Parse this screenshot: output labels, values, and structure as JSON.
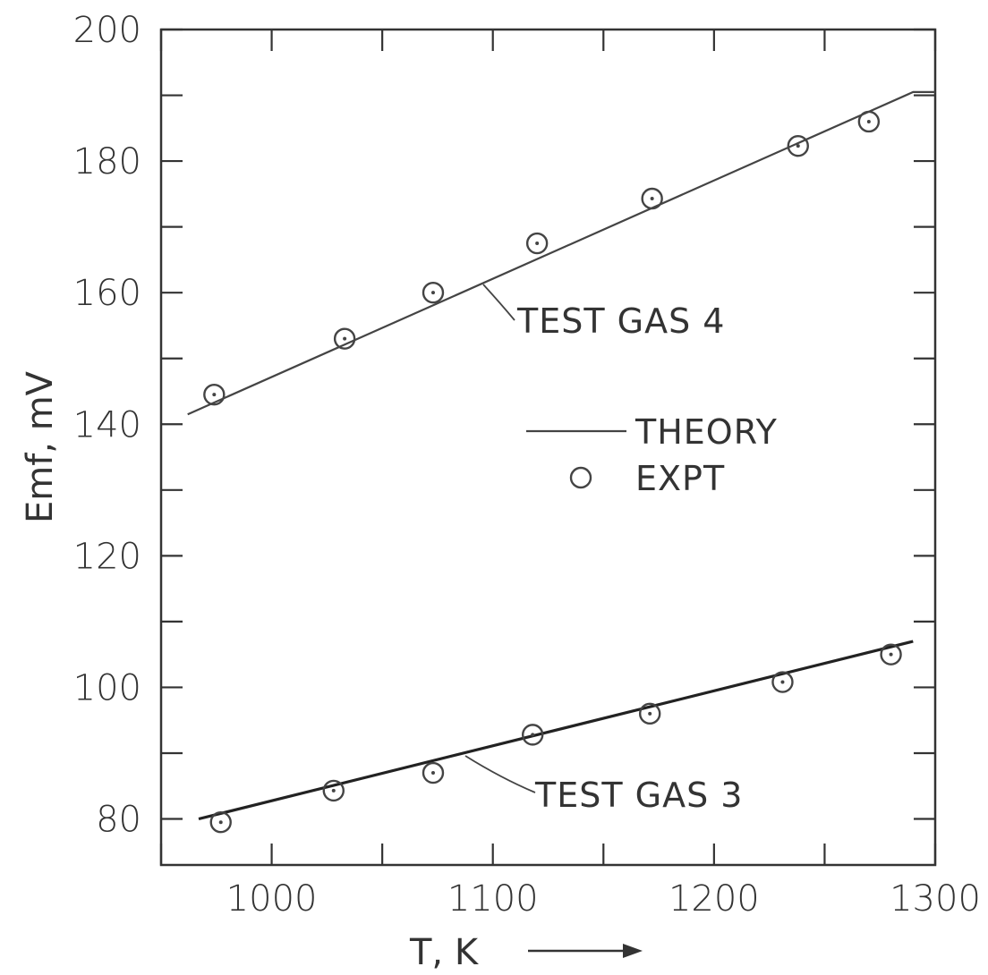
{
  "chart_data": {
    "type": "scatter",
    "xlabel": "T, K",
    "ylabel": "Emf, mV",
    "xlim": [
      950,
      1300
    ],
    "ylim": [
      73,
      200
    ],
    "x_ticks": [
      1000,
      1100,
      1200,
      1300
    ],
    "y_ticks": [
      80,
      100,
      120,
      140,
      160,
      180,
      200
    ],
    "legend": [
      {
        "label": "THEORY",
        "marker": "line"
      },
      {
        "label": "EXPT",
        "marker": "circle"
      }
    ],
    "series": [
      {
        "name": "TEST GAS 4",
        "theory": {
          "x": [
            962,
            1290,
            1300
          ],
          "y": [
            141.5,
            190.5,
            190.5
          ]
        },
        "expt": {
          "x": [
            974,
            1033,
            1073,
            1120,
            1172,
            1238,
            1270
          ],
          "y": [
            144.5,
            153,
            160,
            167.5,
            174.3,
            182.3,
            186
          ]
        }
      },
      {
        "name": "TEST GAS 3",
        "theory": {
          "x": [
            967,
            1290
          ],
          "y": [
            80,
            107
          ]
        },
        "expt": {
          "x": [
            977,
            1028,
            1073,
            1118,
            1171,
            1231,
            1280
          ],
          "y": [
            79.5,
            84.3,
            87,
            92.8,
            96,
            100.8,
            105
          ]
        }
      }
    ]
  },
  "annotations": {
    "gas4": "TEST GAS 4",
    "gas3": "TEST GAS 3",
    "theory": "THEORY",
    "expt": "EXPT"
  }
}
